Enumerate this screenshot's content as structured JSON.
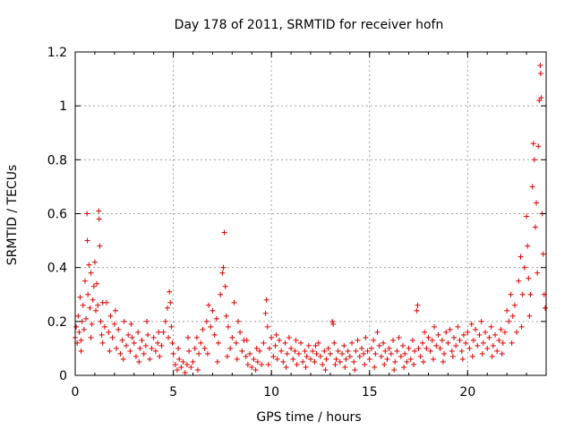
{
  "chart_data": {
    "type": "scatter",
    "title": "Day 178 of 2011, SRMTID for receiver hofn",
    "xlabel": "GPS time / hours",
    "ylabel": "SRMTID / TECUs",
    "xlim": [
      0,
      24
    ],
    "ylim": [
      0,
      1.2
    ],
    "xticks": [
      0,
      5,
      10,
      15,
      20
    ],
    "yticks": [
      0,
      0.2,
      0.4,
      0.6,
      0.8,
      1,
      1.2
    ],
    "xtick_labels": [
      "0",
      "5",
      "10",
      "15",
      "20"
    ],
    "ytick_labels": [
      "0",
      "0.2",
      "0.4",
      "0.6",
      "0.8",
      "1",
      "1.2"
    ],
    "grid": true,
    "legend": "none",
    "marker": "+",
    "color": "#e00000",
    "series": [
      {
        "points": [
          [
            0.0,
            0.14
          ],
          [
            0.05,
            0.18
          ],
          [
            0.1,
            0.12
          ],
          [
            0.15,
            0.22
          ],
          [
            0.2,
            0.16
          ],
          [
            0.25,
            0.29
          ],
          [
            0.3,
            0.13
          ],
          [
            0.35,
            0.2
          ],
          [
            0.4,
            0.26
          ],
          [
            0.45,
            0.17
          ],
          [
            0.5,
            0.35
          ],
          [
            0.55,
            0.21
          ],
          [
            0.6,
            0.6
          ],
          [
            0.62,
            0.5
          ],
          [
            0.65,
            0.3
          ],
          [
            0.7,
            0.41
          ],
          [
            0.75,
            0.25
          ],
          [
            0.8,
            0.38
          ],
          [
            0.85,
            0.19
          ],
          [
            0.9,
            0.28
          ],
          [
            0.95,
            0.33
          ],
          [
            1.0,
            0.42
          ],
          [
            1.05,
            0.24
          ],
          [
            1.1,
            0.34
          ],
          [
            1.15,
            0.26
          ],
          [
            1.2,
            0.61
          ],
          [
            1.22,
            0.58
          ],
          [
            1.25,
            0.48
          ],
          [
            1.3,
            0.2
          ],
          [
            1.35,
            0.15
          ],
          [
            1.4,
            0.12
          ],
          [
            1.5,
            0.18
          ],
          [
            1.6,
            0.27
          ],
          [
            1.7,
            0.16
          ],
          [
            1.8,
            0.22
          ],
          [
            1.9,
            0.14
          ],
          [
            2.0,
            0.19
          ],
          [
            2.1,
            0.1
          ],
          [
            2.2,
            0.17
          ],
          [
            2.3,
            0.08
          ],
          [
            2.4,
            0.13
          ],
          [
            2.5,
            0.2
          ],
          [
            2.6,
            0.11
          ],
          [
            2.7,
            0.15
          ],
          [
            2.8,
            0.09
          ],
          [
            2.9,
            0.14
          ],
          [
            3.0,
            0.12
          ],
          [
            3.1,
            0.07
          ],
          [
            3.2,
            0.16
          ],
          [
            3.3,
            0.1
          ],
          [
            3.4,
            0.13
          ],
          [
            3.5,
            0.08
          ],
          [
            3.6,
            0.11
          ],
          [
            3.7,
            0.15
          ],
          [
            3.8,
            0.06
          ],
          [
            3.9,
            0.1
          ],
          [
            4.0,
            0.14
          ],
          [
            4.1,
            0.09
          ],
          [
            4.2,
            0.12
          ],
          [
            4.3,
            0.07
          ],
          [
            4.4,
            0.11
          ],
          [
            4.5,
            0.16
          ],
          [
            4.6,
            0.2
          ],
          [
            4.7,
            0.25
          ],
          [
            4.8,
            0.31
          ],
          [
            4.85,
            0.27
          ],
          [
            4.9,
            0.18
          ],
          [
            4.95,
            0.12
          ],
          [
            5.0,
            0.08
          ],
          [
            5.1,
            0.04
          ],
          [
            5.2,
            0.02
          ],
          [
            5.3,
            0.06
          ],
          [
            5.4,
            0.03
          ],
          [
            5.5,
            0.05
          ],
          [
            5.6,
            0.01
          ],
          [
            5.7,
            0.04
          ],
          [
            5.8,
            0.09
          ],
          [
            5.9,
            0.03
          ],
          [
            6.0,
            0.05
          ],
          [
            6.1,
            0.1
          ],
          [
            6.2,
            0.14
          ],
          [
            6.3,
            0.08
          ],
          [
            6.4,
            0.12
          ],
          [
            6.5,
            0.17
          ],
          [
            6.6,
            0.1
          ],
          [
            6.7,
            0.2
          ],
          [
            6.8,
            0.26
          ],
          [
            6.9,
            0.18
          ],
          [
            7.0,
            0.24
          ],
          [
            7.1,
            0.15
          ],
          [
            7.2,
            0.21
          ],
          [
            7.3,
            0.12
          ],
          [
            7.4,
            0.3
          ],
          [
            7.5,
            0.38
          ],
          [
            7.55,
            0.4
          ],
          [
            7.6,
            0.53
          ],
          [
            7.65,
            0.33
          ],
          [
            7.7,
            0.22
          ],
          [
            7.8,
            0.18
          ],
          [
            7.9,
            0.1
          ],
          [
            8.0,
            0.14
          ],
          [
            8.1,
            0.27
          ],
          [
            8.2,
            0.12
          ],
          [
            8.3,
            0.2
          ],
          [
            8.4,
            0.16
          ],
          [
            8.5,
            0.09
          ],
          [
            8.6,
            0.13
          ],
          [
            8.7,
            0.07
          ],
          [
            8.8,
            0.04
          ],
          [
            8.9,
            0.08
          ],
          [
            9.0,
            0.03
          ],
          [
            9.1,
            0.06
          ],
          [
            9.2,
            0.02
          ],
          [
            9.3,
            0.05
          ],
          [
            9.4,
            0.09
          ],
          [
            9.5,
            0.04
          ],
          [
            9.6,
            0.12
          ],
          [
            9.7,
            0.23
          ],
          [
            9.75,
            0.28
          ],
          [
            9.8,
            0.18
          ],
          [
            9.9,
            0.1
          ],
          [
            10.0,
            0.14
          ],
          [
            10.1,
            0.07
          ],
          [
            10.2,
            0.11
          ],
          [
            10.3,
            0.06
          ],
          [
            10.4,
            0.13
          ],
          [
            10.5,
            0.09
          ],
          [
            10.6,
            0.05
          ],
          [
            10.7,
            0.12
          ],
          [
            10.8,
            0.08
          ],
          [
            10.9,
            0.14
          ],
          [
            11.0,
            0.1
          ],
          [
            11.1,
            0.06
          ],
          [
            11.2,
            0.09
          ],
          [
            11.3,
            0.04
          ],
          [
            11.4,
            0.08
          ],
          [
            11.5,
            0.12
          ],
          [
            11.6,
            0.05
          ],
          [
            11.7,
            0.09
          ],
          [
            11.8,
            0.07
          ],
          [
            11.9,
            0.11
          ],
          [
            12.0,
            0.06
          ],
          [
            12.1,
            0.09
          ],
          [
            12.2,
            0.05
          ],
          [
            12.3,
            0.08
          ],
          [
            12.4,
            0.12
          ],
          [
            12.5,
            0.07
          ],
          [
            12.6,
            0.04
          ],
          [
            12.7,
            0.09
          ],
          [
            12.8,
            0.06
          ],
          [
            12.9,
            0.1
          ],
          [
            13.0,
            0.08
          ],
          [
            13.1,
            0.2
          ],
          [
            13.15,
            0.19
          ],
          [
            13.2,
            0.12
          ],
          [
            13.3,
            0.06
          ],
          [
            13.4,
            0.09
          ],
          [
            13.5,
            0.05
          ],
          [
            13.6,
            0.08
          ],
          [
            13.7,
            0.11
          ],
          [
            13.8,
            0.06
          ],
          [
            13.9,
            0.09
          ],
          [
            14.0,
            0.07
          ],
          [
            14.1,
            0.12
          ],
          [
            14.2,
            0.05
          ],
          [
            14.3,
            0.09
          ],
          [
            14.4,
            0.13
          ],
          [
            14.5,
            0.07
          ],
          [
            14.6,
            0.1
          ],
          [
            14.7,
            0.08
          ],
          [
            14.8,
            0.14
          ],
          [
            14.9,
            0.09
          ],
          [
            15.0,
            0.06
          ],
          [
            15.1,
            0.1
          ],
          [
            15.2,
            0.13
          ],
          [
            15.3,
            0.08
          ],
          [
            15.4,
            0.16
          ],
          [
            15.5,
            0.11
          ],
          [
            15.6,
            0.07
          ],
          [
            15.7,
            0.12
          ],
          [
            15.8,
            0.09
          ],
          [
            15.9,
            0.06
          ],
          [
            16.0,
            0.1
          ],
          [
            16.1,
            0.08
          ],
          [
            16.2,
            0.13
          ],
          [
            16.3,
            0.05
          ],
          [
            16.4,
            0.09
          ],
          [
            16.5,
            0.14
          ],
          [
            16.6,
            0.07
          ],
          [
            16.7,
            0.11
          ],
          [
            16.8,
            0.08
          ],
          [
            16.9,
            0.05
          ],
          [
            17.0,
            0.1
          ],
          [
            17.1,
            0.06
          ],
          [
            17.2,
            0.13
          ],
          [
            17.3,
            0.09
          ],
          [
            17.4,
            0.24
          ],
          [
            17.45,
            0.26
          ],
          [
            17.5,
            0.1
          ],
          [
            17.6,
            0.07
          ],
          [
            17.7,
            0.12
          ],
          [
            17.8,
            0.16
          ],
          [
            17.9,
            0.1
          ],
          [
            18.0,
            0.14
          ],
          [
            18.1,
            0.09
          ],
          [
            18.2,
            0.13
          ],
          [
            18.3,
            0.18
          ],
          [
            18.4,
            0.11
          ],
          [
            18.5,
            0.15
          ],
          [
            18.6,
            0.1
          ],
          [
            18.7,
            0.13
          ],
          [
            18.8,
            0.08
          ],
          [
            18.9,
            0.16
          ],
          [
            19.0,
            0.12
          ],
          [
            19.1,
            0.17
          ],
          [
            19.2,
            0.09
          ],
          [
            19.3,
            0.14
          ],
          [
            19.4,
            0.11
          ],
          [
            19.5,
            0.18
          ],
          [
            19.6,
            0.13
          ],
          [
            19.7,
            0.09
          ],
          [
            19.8,
            0.15
          ],
          [
            19.9,
            0.12
          ],
          [
            20.0,
            0.16
          ],
          [
            20.1,
            0.1
          ],
          [
            20.2,
            0.19
          ],
          [
            20.3,
            0.13
          ],
          [
            20.4,
            0.17
          ],
          [
            20.5,
            0.11
          ],
          [
            20.6,
            0.15
          ],
          [
            20.7,
            0.2
          ],
          [
            20.8,
            0.12
          ],
          [
            20.9,
            0.16
          ],
          [
            21.0,
            0.1
          ],
          [
            21.1,
            0.14
          ],
          [
            21.2,
            0.18
          ],
          [
            21.3,
            0.11
          ],
          [
            21.4,
            0.15
          ],
          [
            21.5,
            0.09
          ],
          [
            21.6,
            0.13
          ],
          [
            21.7,
            0.17
          ],
          [
            21.8,
            0.12
          ],
          [
            21.9,
            0.16
          ],
          [
            22.0,
            0.24
          ],
          [
            22.1,
            0.2
          ],
          [
            22.2,
            0.3
          ],
          [
            22.3,
            0.22
          ],
          [
            22.4,
            0.26
          ],
          [
            22.5,
            0.16
          ],
          [
            22.6,
            0.35
          ],
          [
            22.7,
            0.44
          ],
          [
            22.8,
            0.3
          ],
          [
            22.9,
            0.4
          ],
          [
            23.0,
            0.59
          ],
          [
            23.05,
            0.48
          ],
          [
            23.1,
            0.36
          ],
          [
            23.15,
            0.22
          ],
          [
            23.2,
            0.3
          ],
          [
            23.3,
            0.7
          ],
          [
            23.35,
            0.86
          ],
          [
            23.4,
            0.8
          ],
          [
            23.45,
            0.55
          ],
          [
            23.5,
            0.64
          ],
          [
            23.55,
            0.38
          ],
          [
            23.6,
            0.85
          ],
          [
            23.65,
            1.02
          ],
          [
            23.7,
            1.15
          ],
          [
            23.72,
            1.12
          ],
          [
            23.75,
            1.03
          ],
          [
            23.8,
            0.6
          ],
          [
            23.85,
            0.45
          ],
          [
            23.9,
            0.3
          ],
          [
            23.95,
            0.25
          ],
          [
            0.3,
            0.09
          ],
          [
            0.8,
            0.14
          ],
          [
            1.4,
            0.27
          ],
          [
            1.75,
            0.09
          ],
          [
            2.05,
            0.24
          ],
          [
            2.45,
            0.06
          ],
          [
            2.85,
            0.19
          ],
          [
            3.25,
            0.05
          ],
          [
            3.65,
            0.2
          ],
          [
            4.25,
            0.16
          ],
          [
            4.75,
            0.14
          ],
          [
            5.25,
            0.1
          ],
          [
            5.75,
            0.14
          ],
          [
            6.25,
            0.02
          ],
          [
            6.75,
            0.08
          ],
          [
            7.25,
            0.05
          ],
          [
            7.75,
            0.07
          ],
          [
            8.25,
            0.06
          ],
          [
            8.75,
            0.13
          ],
          [
            9.25,
            0.1
          ],
          [
            9.85,
            0.04
          ],
          [
            10.25,
            0.15
          ],
          [
            10.75,
            0.03
          ],
          [
            11.25,
            0.13
          ],
          [
            11.75,
            0.03
          ],
          [
            12.25,
            0.11
          ],
          [
            12.75,
            0.02
          ],
          [
            13.25,
            0.04
          ],
          [
            13.75,
            0.03
          ],
          [
            14.25,
            0.02
          ],
          [
            14.75,
            0.04
          ],
          [
            15.25,
            0.03
          ],
          [
            15.75,
            0.04
          ],
          [
            16.25,
            0.02
          ],
          [
            16.75,
            0.03
          ],
          [
            17.25,
            0.04
          ],
          [
            17.75,
            0.05
          ],
          [
            18.25,
            0.06
          ],
          [
            18.75,
            0.05
          ],
          [
            19.25,
            0.07
          ],
          [
            19.75,
            0.06
          ],
          [
            20.25,
            0.07
          ],
          [
            20.75,
            0.08
          ],
          [
            21.25,
            0.07
          ],
          [
            21.75,
            0.08
          ],
          [
            22.25,
            0.12
          ],
          [
            22.75,
            0.18
          ]
        ]
      }
    ]
  }
}
